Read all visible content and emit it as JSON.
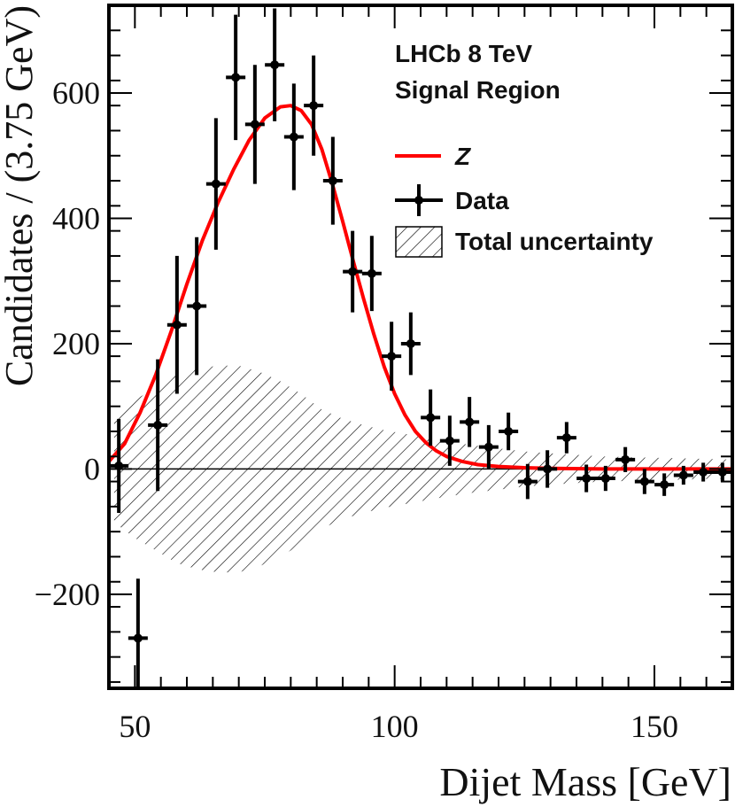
{
  "chart_data": {
    "type": "scatter",
    "title": "",
    "xlabel": "Dijet Mass [GeV]",
    "ylabel": "Candidates / (3.75 GeV)",
    "xlim": [
      45,
      165
    ],
    "ylim": [
      -350,
      740
    ],
    "x_ticks": [
      50,
      100,
      150
    ],
    "x_tick_labels": [
      "50",
      "100",
      "150"
    ],
    "y_ticks": [
      -200,
      0,
      200,
      400,
      600
    ],
    "y_tick_labels": [
      "−200",
      "0",
      "200",
      "400",
      "600"
    ],
    "bin_width": 3.75,
    "annotations": [
      "LHCb 8 TeV",
      "Signal Region"
    ],
    "legend": {
      "position": "top-right",
      "entries": [
        {
          "label": "Z",
          "style": "line",
          "color": "#ff0000",
          "italic": true
        },
        {
          "label": "Data",
          "style": "marker",
          "color": "#000000"
        },
        {
          "label": "Total uncertainty",
          "style": "hatch",
          "color": "#000000"
        }
      ]
    },
    "series": [
      {
        "name": "Data",
        "type": "errorbar",
        "x": [
          46.9,
          50.6,
          54.4,
          58.1,
          61.9,
          65.6,
          69.4,
          73.1,
          76.9,
          80.6,
          84.4,
          88.1,
          91.9,
          95.6,
          99.4,
          103.1,
          106.9,
          110.6,
          114.4,
          118.1,
          121.9,
          125.6,
          129.4,
          133.1,
          136.9,
          140.6,
          144.4,
          148.1,
          151.9,
          155.6,
          159.4,
          163.1
        ],
        "y": [
          5,
          -270,
          70,
          230,
          260,
          455,
          625,
          550,
          645,
          530,
          580,
          460,
          315,
          312,
          180,
          200,
          82,
          45,
          75,
          35,
          60,
          -20,
          0,
          50,
          -15,
          -15,
          15,
          -20,
          -25,
          -10,
          -5,
          -5
        ],
        "yerr": [
          75,
          95,
          105,
          110,
          110,
          105,
          100,
          95,
          90,
          85,
          80,
          70,
          65,
          60,
          55,
          50,
          45,
          40,
          40,
          35,
          30,
          28,
          30,
          25,
          22,
          20,
          20,
          20,
          18,
          15,
          15,
          15
        ]
      },
      {
        "name": "Z",
        "type": "line",
        "color": "#ff0000",
        "x": [
          45,
          48,
          51,
          54,
          57,
          60,
          63,
          66,
          69,
          72,
          75,
          78,
          80,
          82,
          84,
          86,
          88,
          90,
          92,
          94,
          96,
          98,
          100,
          102,
          104,
          106,
          108,
          110,
          113,
          116,
          120,
          125,
          130,
          140,
          150,
          165
        ],
        "y": [
          12,
          40,
          90,
          150,
          220,
          295,
          365,
          425,
          478,
          525,
          560,
          578,
          580,
          572,
          550,
          510,
          455,
          395,
          333,
          272,
          215,
          163,
          120,
          86,
          60,
          42,
          29,
          20,
          12,
          7,
          4,
          2,
          1,
          0,
          0,
          0
        ]
      },
      {
        "name": "Total uncertainty",
        "type": "band",
        "x": [
          46,
          50,
          54,
          58,
          62,
          66,
          70,
          74,
          78,
          82,
          86,
          90,
          94,
          98,
          102,
          106,
          110,
          115,
          120,
          125,
          130,
          140,
          150,
          165
        ],
        "y": [
          0,
          0,
          0,
          0,
          0,
          0,
          0,
          0,
          0,
          0,
          0,
          0,
          0,
          0,
          0,
          0,
          0,
          0,
          0,
          0,
          0,
          0,
          0,
          0
        ],
        "err": [
          85,
          110,
          130,
          150,
          160,
          165,
          165,
          155,
          140,
          120,
          95,
          80,
          70,
          62,
          56,
          50,
          44,
          38,
          33,
          28,
          25,
          20,
          18,
          15
        ]
      }
    ]
  }
}
